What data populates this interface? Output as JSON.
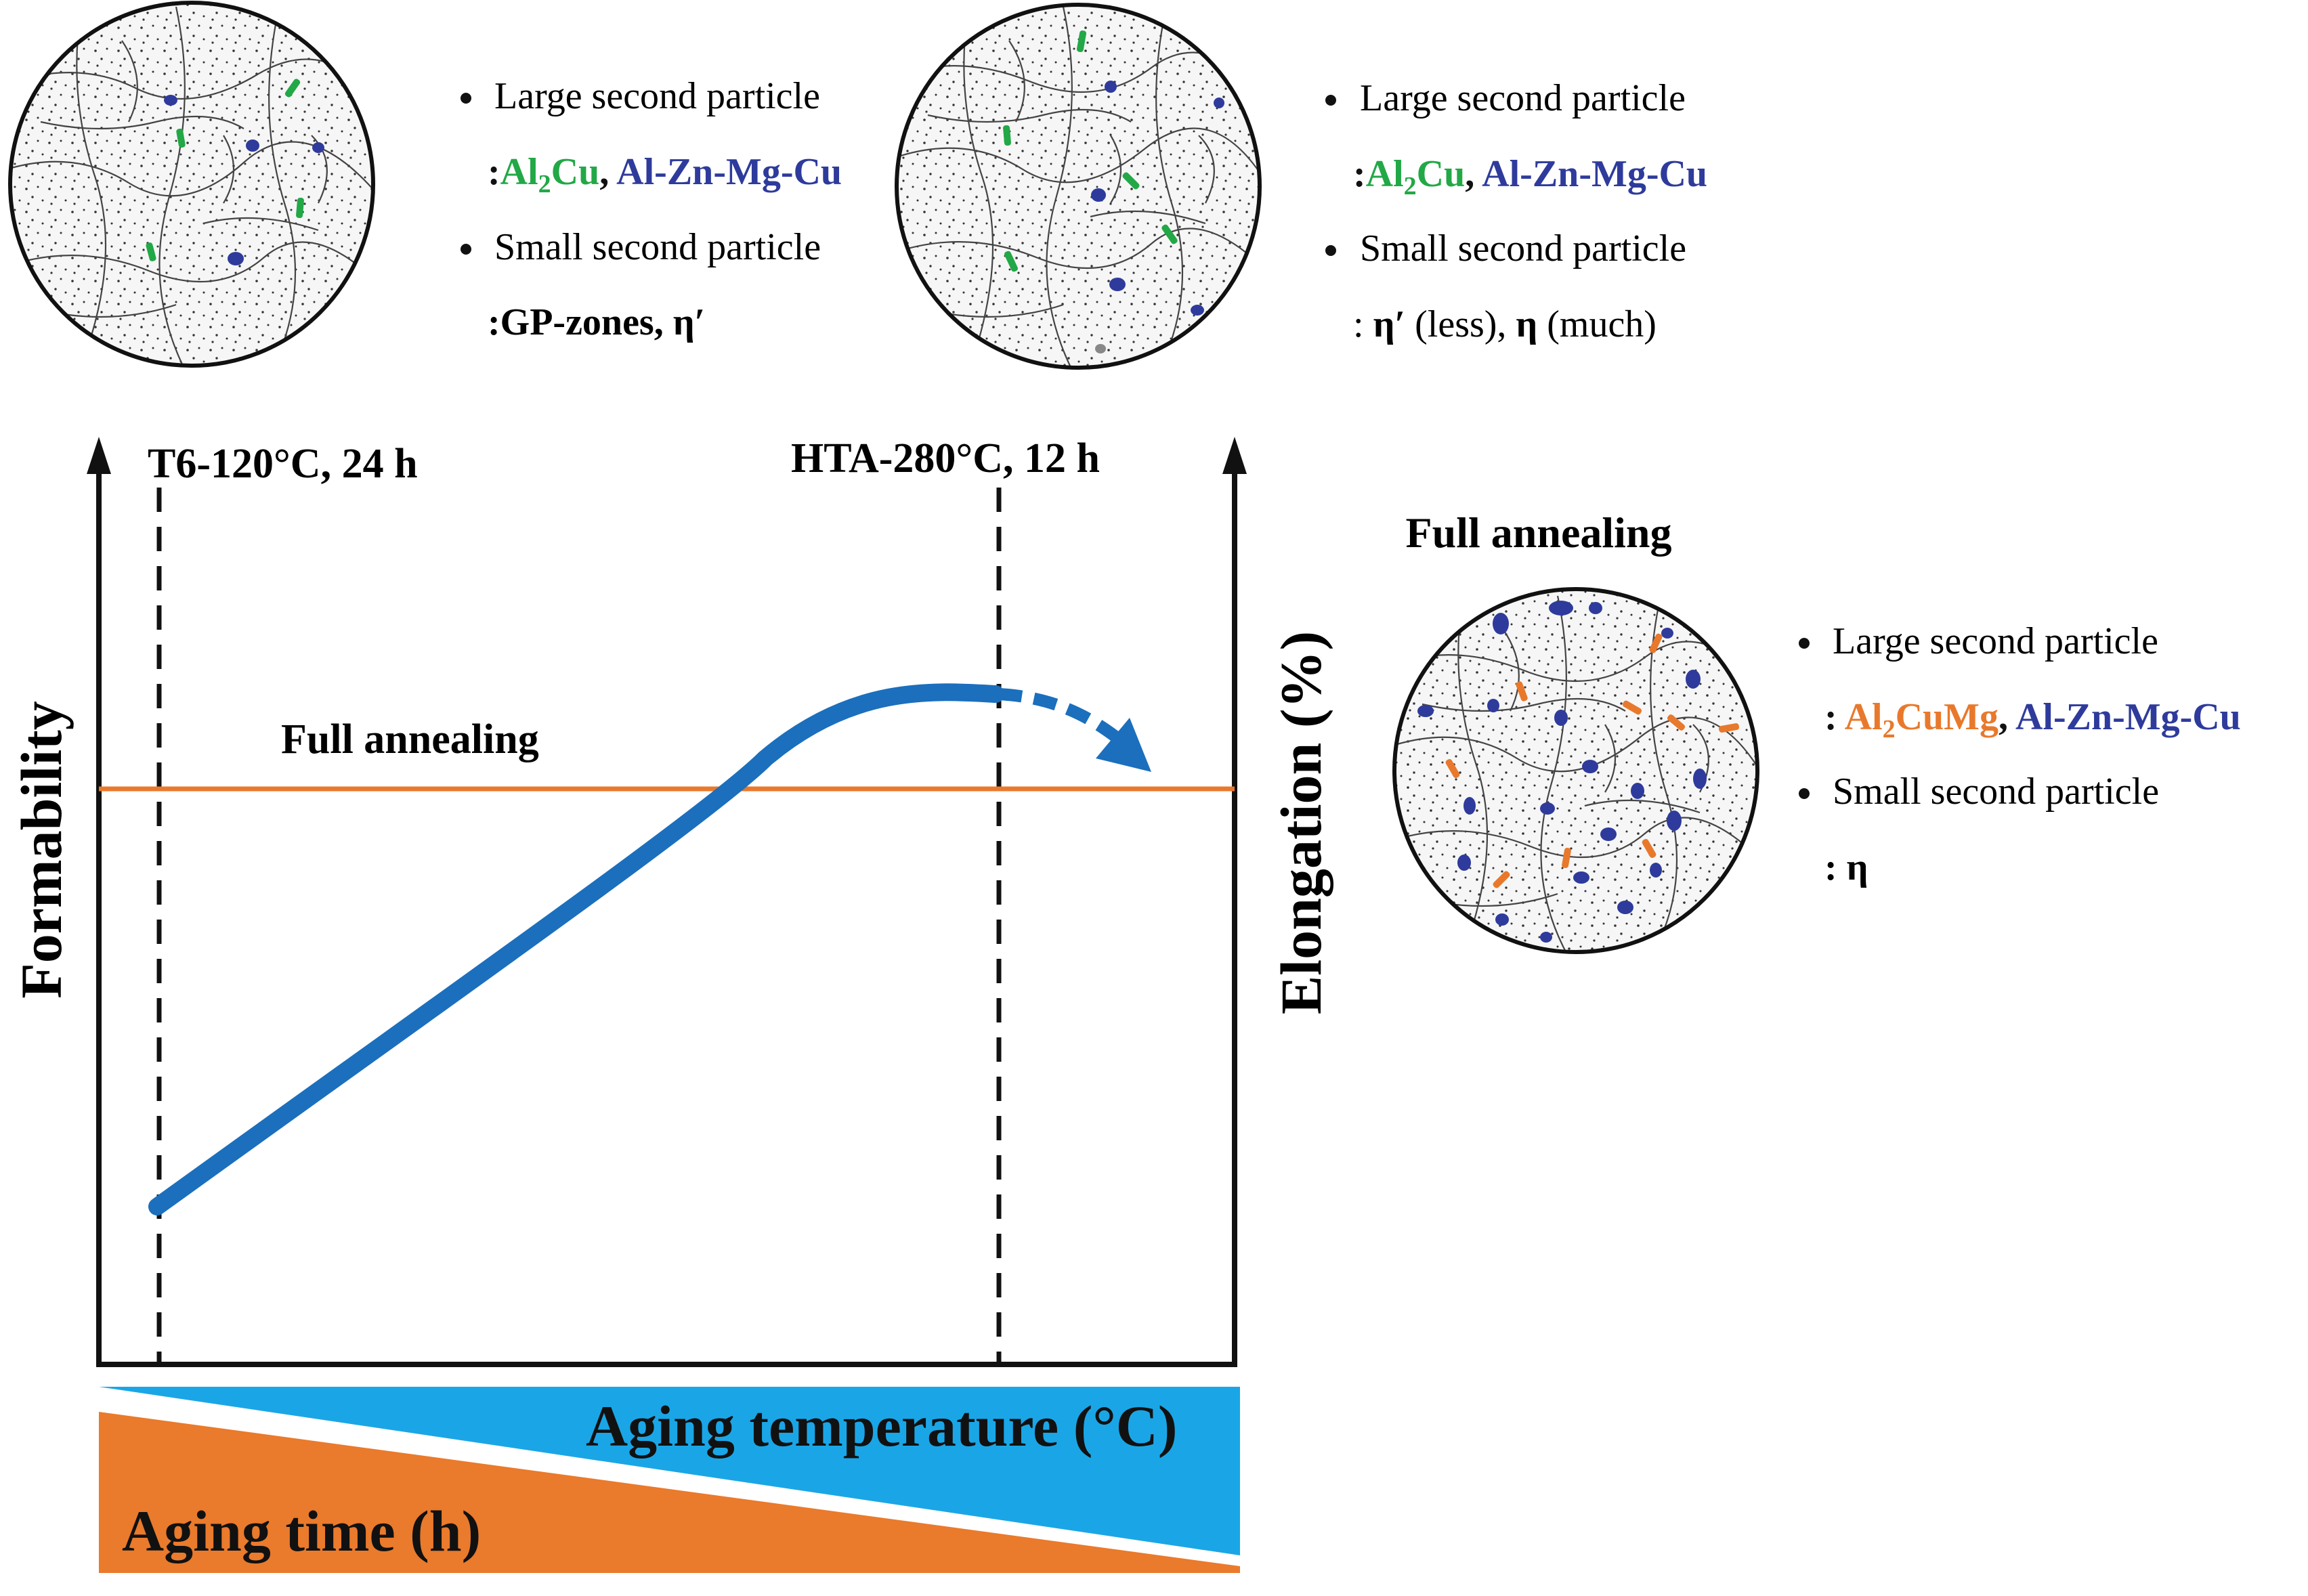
{
  "colors": {
    "green": "#22a846",
    "blue": "#2e3b9c",
    "orange": "#e8792c",
    "curve": "#1b6fbd",
    "temp_band": "#1aa6e6",
    "time_band": "#ea7a2c",
    "annealing_line": "#e8792c"
  },
  "micro_t6": {
    "bullets": [
      {
        "label": "Large second particle",
        "sep": ":",
        "phase1": "Al",
        "phase1_sub": "2",
        "phase1_rest": "Cu",
        "comma": ", ",
        "phase2": "Al-Zn-Mg-Cu"
      },
      {
        "label": "Small second particle",
        "sep": ":",
        "detail": "GP-zones, η′"
      }
    ]
  },
  "micro_hta": {
    "bullets": [
      {
        "label": "Large second particle",
        "sep": ":",
        "phase1": "Al",
        "phase1_sub": "2",
        "phase1_rest": "Cu",
        "comma": ", ",
        "phase2": "Al-Zn-Mg-Cu"
      },
      {
        "label": "Small second particle",
        "sep": ": ",
        "eta_prime": "η′",
        "less": " (less), ",
        "eta": "η",
        "much": " (much)"
      }
    ]
  },
  "micro_full": {
    "title": "Full annealing",
    "bullets": [
      {
        "label": "Large second particle",
        "sep": ": ",
        "phase1": "Al",
        "phase1_sub": "2",
        "phase1_rest": "CuMg",
        "comma": ", ",
        "phase2": "Al-Zn-Mg-Cu"
      },
      {
        "label": "Small second particle",
        "sep": ": ",
        "detail": "η"
      }
    ]
  },
  "chart": {
    "y_left_label": "Formability",
    "y_right_label": "Elongation (%)",
    "marker_t6": "T6-120°C, 24 h",
    "marker_hta": "HTA-280°C, 12 h",
    "annealing_label": "Full annealing",
    "temp_label": "Aging temperature (°C)",
    "time_label": "Aging time (h)"
  }
}
